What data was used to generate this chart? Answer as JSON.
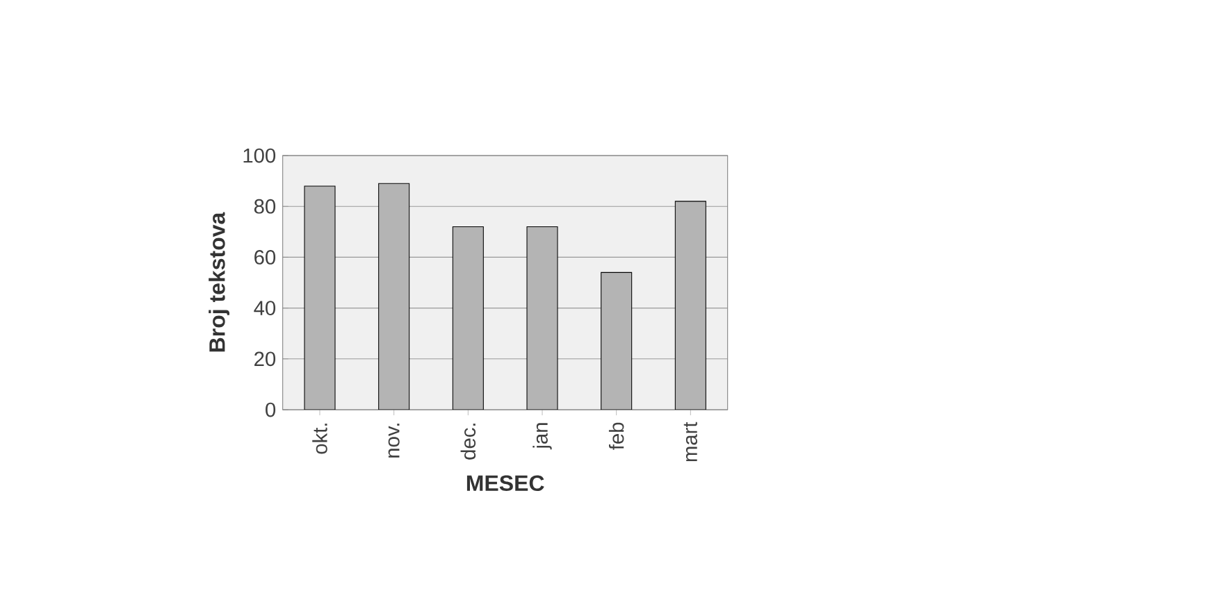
{
  "chart_data": {
    "type": "bar",
    "xlabel": "MESEC",
    "ylabel": "Broj tekstova",
    "categories": [
      "okt.",
      "nov.",
      "dec.",
      "jan",
      "feb",
      "mart"
    ],
    "values": [
      88,
      89,
      72,
      72,
      54,
      82
    ],
    "color": "#b4b4b4",
    "ylim": [
      0,
      100
    ],
    "yticks": [
      0,
      20,
      40,
      60,
      80,
      100
    ],
    "grid": "y"
  }
}
